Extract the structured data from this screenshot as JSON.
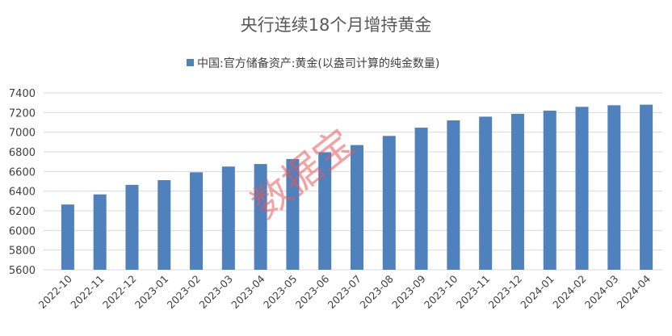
{
  "chart_data": {
    "type": "bar",
    "title": "央行连续18个月增持黄金",
    "legend_position": "top",
    "grid": true,
    "ylim": [
      5600,
      7400
    ],
    "yticks": [
      5600,
      5800,
      6000,
      6200,
      6400,
      6600,
      6800,
      7000,
      7200,
      7400
    ],
    "categories": [
      "2022-10",
      "2022-11",
      "2022-12",
      "2023-01",
      "2023-02",
      "2023-03",
      "2023-04",
      "2023-05",
      "2023-06",
      "2023-07",
      "2023-08",
      "2023-09",
      "2023-10",
      "2023-11",
      "2023-12",
      "2024-01",
      "2024-02",
      "2024-03",
      "2024-04"
    ],
    "series": [
      {
        "name": "中国:官方储备资产:黄金(以盎司计算的纯金数量)",
        "color": "#4f81bd",
        "values": [
          6264,
          6367,
          6464,
          6512,
          6592,
          6650,
          6676,
          6727,
          6795,
          6869,
          6962,
          7046,
          7120,
          7158,
          7187,
          7219,
          7258,
          7274,
          7280
        ]
      }
    ],
    "watermark": "数据宝"
  }
}
